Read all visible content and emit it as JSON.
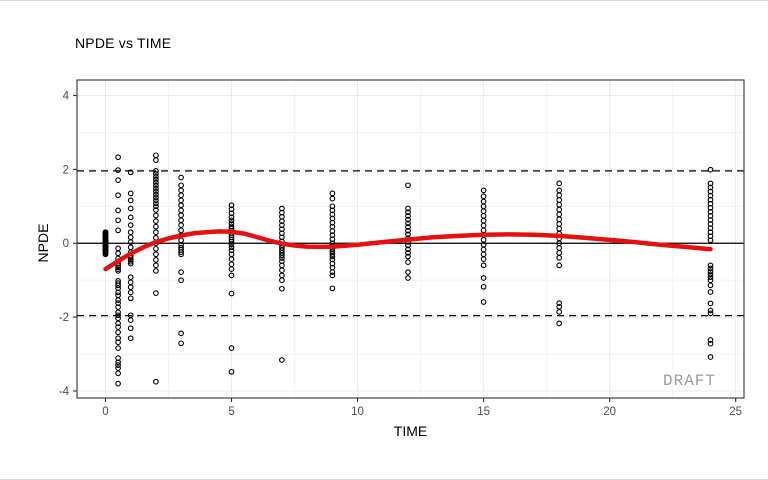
{
  "chart_data": {
    "type": "scatter",
    "title": "NPDE vs TIME",
    "xlabel": "TIME",
    "ylabel": "NPDE",
    "watermark": "DRAFT",
    "xlim": [
      -1.13,
      25.33
    ],
    "ylim": [
      -4.19,
      4.42
    ],
    "x_ticks": [
      0,
      5,
      10,
      15,
      20,
      25
    ],
    "y_ticks": [
      -4,
      -2,
      0,
      2,
      4
    ],
    "x_minor": [
      2.5,
      7.5,
      12.5,
      17.5,
      22.5
    ],
    "y_minor": [
      -3,
      -1,
      1,
      3
    ],
    "grid": true,
    "legend": "none",
    "reference_lines": [
      {
        "y": 0,
        "style": "solid",
        "color": "#000000"
      },
      {
        "y": 1.96,
        "style": "dashed",
        "color": "#000000"
      },
      {
        "y": -1.96,
        "style": "dashed",
        "color": "#000000"
      }
    ],
    "colors": {
      "point": "#000000",
      "smooth": "#e41111",
      "grid_major": "#ebebeb",
      "grid_minor": "#f4f4f4",
      "panel_border": "#333333",
      "tick_label": "#4d4d4d",
      "watermark": "#9b9b9b",
      "background": "#ffffff"
    },
    "series": [
      {
        "name": "npde-observations",
        "type": "scatter",
        "marker": "open-circle",
        "groups": [
          {
            "time": 0,
            "npde": [
              0.3,
              0.28,
              0.26,
              0.24,
              0.22,
              0.2,
              0.18,
              0.16,
              0.14,
              0.12,
              0.1,
              0.08,
              0.06,
              0.04,
              0.02,
              0.0,
              -0.02,
              -0.04,
              -0.06,
              -0.08,
              -0.1,
              -0.12,
              -0.14,
              -0.16,
              -0.18,
              -0.2,
              -0.22,
              -0.24,
              -0.26,
              -0.28,
              -0.3
            ]
          },
          {
            "time": 0.5,
            "npde": [
              2.33,
              1.98,
              1.71,
              1.3,
              0.89,
              0.62,
              0.35,
              -0.14,
              -0.27,
              -0.41,
              -0.54,
              -0.6,
              -0.65,
              -0.7,
              -0.75,
              -1.02,
              -1.08,
              -1.14,
              -1.22,
              -1.33,
              -1.41,
              -1.54,
              -1.62,
              -1.73,
              -1.87,
              -1.95,
              -2.03,
              -2.17,
              -2.27,
              -2.41,
              -2.57,
              -2.68,
              -2.84,
              -3.11,
              -3.22,
              -3.3,
              -3.38,
              -3.52,
              -3.8
            ]
          },
          {
            "time": 1,
            "npde": [
              1.92,
              1.35,
              1.16,
              0.94,
              0.7,
              0.49,
              0.3,
              0.16,
              0.03,
              -0.11,
              -0.24,
              -0.35,
              -0.4,
              -0.45,
              -0.5,
              -0.55,
              -0.92,
              -1.06,
              -1.19,
              -1.33,
              -1.49,
              -1.95,
              -2.08,
              -2.3,
              -2.57
            ]
          },
          {
            "time": 2,
            "npde": [
              2.38,
              2.25,
              1.96,
              1.88,
              1.8,
              1.72,
              1.64,
              1.56,
              1.48,
              1.4,
              1.32,
              1.24,
              1.16,
              1.08,
              1.0,
              0.9,
              0.75,
              0.6,
              0.45,
              0.3,
              0.15,
              0.0,
              -0.15,
              -0.3,
              -0.45,
              -0.6,
              -0.75,
              -1.35,
              -3.75
            ]
          },
          {
            "time": 3,
            "npde": [
              1.78,
              1.57,
              1.43,
              1.3,
              1.16,
              1.03,
              0.89,
              0.76,
              0.62,
              0.49,
              0.35,
              0.22,
              0.08,
              -0.05,
              -0.12,
              -0.18,
              -0.24,
              -0.3,
              -0.78,
              -1.0,
              -2.44,
              -2.71
            ]
          },
          {
            "time": 5,
            "npde": [
              1.03,
              0.92,
              0.81,
              0.7,
              0.62,
              0.54,
              0.46,
              0.4,
              0.34,
              0.28,
              0.22,
              0.16,
              0.1,
              0.04,
              -0.03,
              -0.11,
              -0.19,
              -0.3,
              -0.43,
              -0.57,
              -0.7,
              -0.87,
              -1.36,
              -2.84,
              -3.48
            ]
          },
          {
            "time": 7,
            "npde": [
              0.94,
              0.83,
              0.72,
              0.6,
              0.49,
              0.38,
              0.27,
              0.16,
              0.05,
              -0.05,
              -0.12,
              -0.19,
              -0.26,
              -0.33,
              -0.4,
              -0.49,
              -0.6,
              -0.73,
              -0.87,
              -1.0,
              -1.23,
              -3.16
            ]
          },
          {
            "time": 9,
            "npde": [
              1.35,
              1.21,
              1.0,
              0.89,
              0.78,
              0.67,
              0.56,
              0.45,
              0.33,
              0.22,
              0.11,
              0.0,
              -0.08,
              -0.15,
              -0.22,
              -0.29,
              -0.36,
              -0.44,
              -0.55,
              -0.66,
              -0.78,
              -0.87,
              -1.22
            ]
          },
          {
            "time": 12,
            "npde": [
              1.57,
              0.94,
              0.84,
              0.74,
              0.64,
              0.54,
              0.44,
              0.34,
              0.24,
              0.14,
              0.04,
              -0.06,
              -0.16,
              -0.26,
              -0.36,
              -0.51,
              -0.78,
              -0.94
            ]
          },
          {
            "time": 15,
            "npde": [
              1.43,
              1.27,
              1.13,
              1.0,
              0.87,
              0.74,
              0.61,
              0.48,
              0.35,
              0.22,
              0.09,
              -0.04,
              -0.17,
              -0.3,
              -0.43,
              -0.6,
              -0.94,
              -1.18,
              -1.59
            ]
          },
          {
            "time": 18,
            "npde": [
              1.62,
              1.43,
              1.3,
              1.17,
              1.04,
              0.91,
              0.78,
              0.65,
              0.52,
              0.39,
              0.26,
              0.13,
              0.0,
              -0.13,
              -0.26,
              -0.39,
              -0.6,
              -1.62,
              -1.72,
              -1.86,
              -2.17
            ]
          },
          {
            "time": 24,
            "npde": [
              1.99,
              1.62,
              1.51,
              1.4,
              1.29,
              1.18,
              1.07,
              0.96,
              0.85,
              0.74,
              0.63,
              0.52,
              0.41,
              0.3,
              0.19,
              0.08,
              -0.6,
              -0.68,
              -0.76,
              -0.84,
              -0.92,
              -1.0,
              -1.14,
              -1.32,
              -1.63,
              -1.82,
              -1.9,
              -2.62,
              -2.72,
              -3.08
            ]
          }
        ]
      },
      {
        "name": "loess-smooth",
        "type": "line",
        "color": "#e41111",
        "width": 4.5,
        "x": [
          0,
          0.5,
          1,
          1.5,
          2,
          2.5,
          3,
          3.5,
          4,
          4.5,
          5,
          5.5,
          6,
          6.5,
          7,
          7.5,
          8,
          8.5,
          9,
          9.5,
          10,
          11,
          12,
          13,
          14,
          15,
          16,
          17,
          18,
          19,
          20,
          21,
          22,
          23,
          24
        ],
        "y": [
          -0.7,
          -0.48,
          -0.28,
          -0.11,
          0.03,
          0.13,
          0.21,
          0.27,
          0.3,
          0.32,
          0.31,
          0.26,
          0.17,
          0.07,
          -0.01,
          -0.06,
          -0.09,
          -0.1,
          -0.09,
          -0.07,
          -0.04,
          0.03,
          0.1,
          0.16,
          0.2,
          0.23,
          0.24,
          0.23,
          0.2,
          0.15,
          0.09,
          0.03,
          -0.04,
          -0.1,
          -0.16
        ]
      }
    ]
  }
}
